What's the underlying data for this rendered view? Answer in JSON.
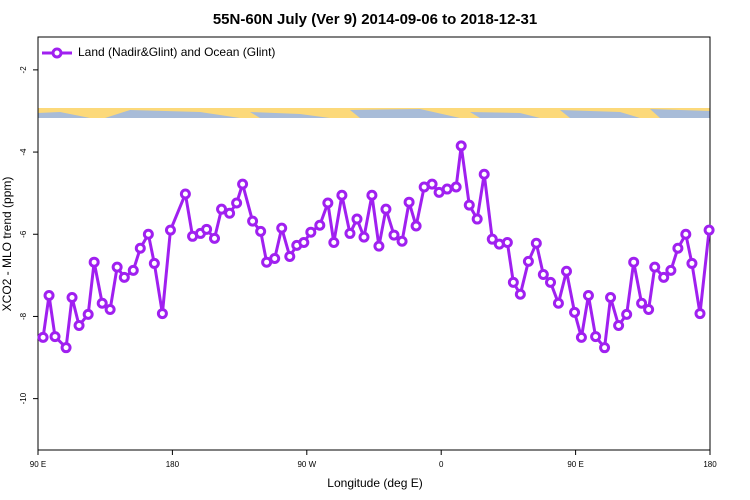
{
  "chart_data": {
    "type": "line",
    "title": "55N-60N July (Ver 9)   2014-09-06 to 2018-12-31",
    "x_label": "Longitude (deg E)",
    "y_label": "XCO2 - MLO trend (ppm)",
    "legend": "top-left",
    "xlim": [
      90,
      540
    ],
    "xticks": [
      {
        "value": 90,
        "label": "90 E"
      },
      180,
      {
        "value": 270,
        "label": "90 W"
      },
      {
        "value": 360,
        "label": "0"
      },
      {
        "value": 450,
        "label": "90 E"
      },
      {
        "value": 540,
        "label": "180"
      }
    ],
    "ylim": [
      -11.25,
      -1.2
    ],
    "yticks": [
      -10,
      -8,
      -6,
      -4,
      -2
    ],
    "series": [
      {
        "name": "Land (Nadir&Glint) and Ocean (Glint)",
        "color": "#a020f0",
        "x": [
          93.4,
          97.4,
          101.4,
          108.8,
          112.8,
          117.5,
          123.6,
          127.6,
          133,
          138.3,
          143,
          147.8,
          153.8,
          158.5,
          163.9,
          167.9,
          173.3,
          178.7,
          188.7,
          193.5,
          198.8,
          202.9,
          208.2,
          212.9,
          218.3,
          223,
          227,
          233.7,
          239.1,
          243.1,
          248.5,
          253.2,
          258.6,
          263.3,
          268,
          272.7,
          278.7,
          284.1,
          288.1,
          293.5,
          298.9,
          303.6,
          308.3,
          313.6,
          318.3,
          323,
          328.4,
          333.8,
          338.5,
          343.2,
          348.6,
          353.9,
          358.6,
          364,
          370,
          373.4,
          378.8,
          384.1,
          388.8,
          394.2,
          398.9,
          404.3,
          408.3,
          413,
          418.4,
          423.7,
          428.4,
          433.2,
          438.5,
          443.9,
          449.3,
          453.9,
          458.6,
          463.4,
          469.4,
          473.4,
          478.8,
          484.2,
          488.9,
          494.2,
          498.9,
          503,
          509,
          513.8,
          518.5,
          523.8,
          527.9,
          533.3,
          539.4
        ],
        "values": [
          -8.51,
          -7.49,
          -8.49,
          -8.76,
          -7.54,
          -8.22,
          -7.95,
          -6.68,
          -7.68,
          -7.83,
          -6.8,
          -7.05,
          -6.88,
          -6.34,
          -6.0,
          -6.71,
          -7.93,
          -5.9,
          -5.02,
          -6.05,
          -5.98,
          -5.88,
          -6.1,
          -5.39,
          -5.49,
          -5.24,
          -4.78,
          -5.68,
          -5.93,
          -6.68,
          -6.59,
          -5.85,
          -6.54,
          -6.27,
          -6.2,
          -5.95,
          -5.78,
          -5.24,
          -6.2,
          -5.05,
          -5.98,
          -5.63,
          -6.07,
          -5.05,
          -6.29,
          -5.39,
          -6.02,
          -6.17,
          -5.22,
          -5.8,
          -4.85,
          -4.78,
          -4.98,
          -4.9,
          -4.85,
          -3.85,
          -5.29,
          -5.63,
          -4.54,
          -6.12,
          -6.24,
          -6.2,
          -7.17,
          -7.46,
          -6.66,
          -6.22,
          -6.98,
          -7.17,
          -7.68,
          -6.9,
          -7.9,
          -8.51,
          -7.49,
          -8.49,
          -8.76,
          -7.54,
          -8.22,
          -7.95,
          -6.68,
          -7.68,
          -7.83,
          -6.8,
          -7.05,
          -6.88,
          -6.34,
          -6.0,
          -6.71,
          -7.93,
          -5.9
        ]
      }
    ]
  }
}
